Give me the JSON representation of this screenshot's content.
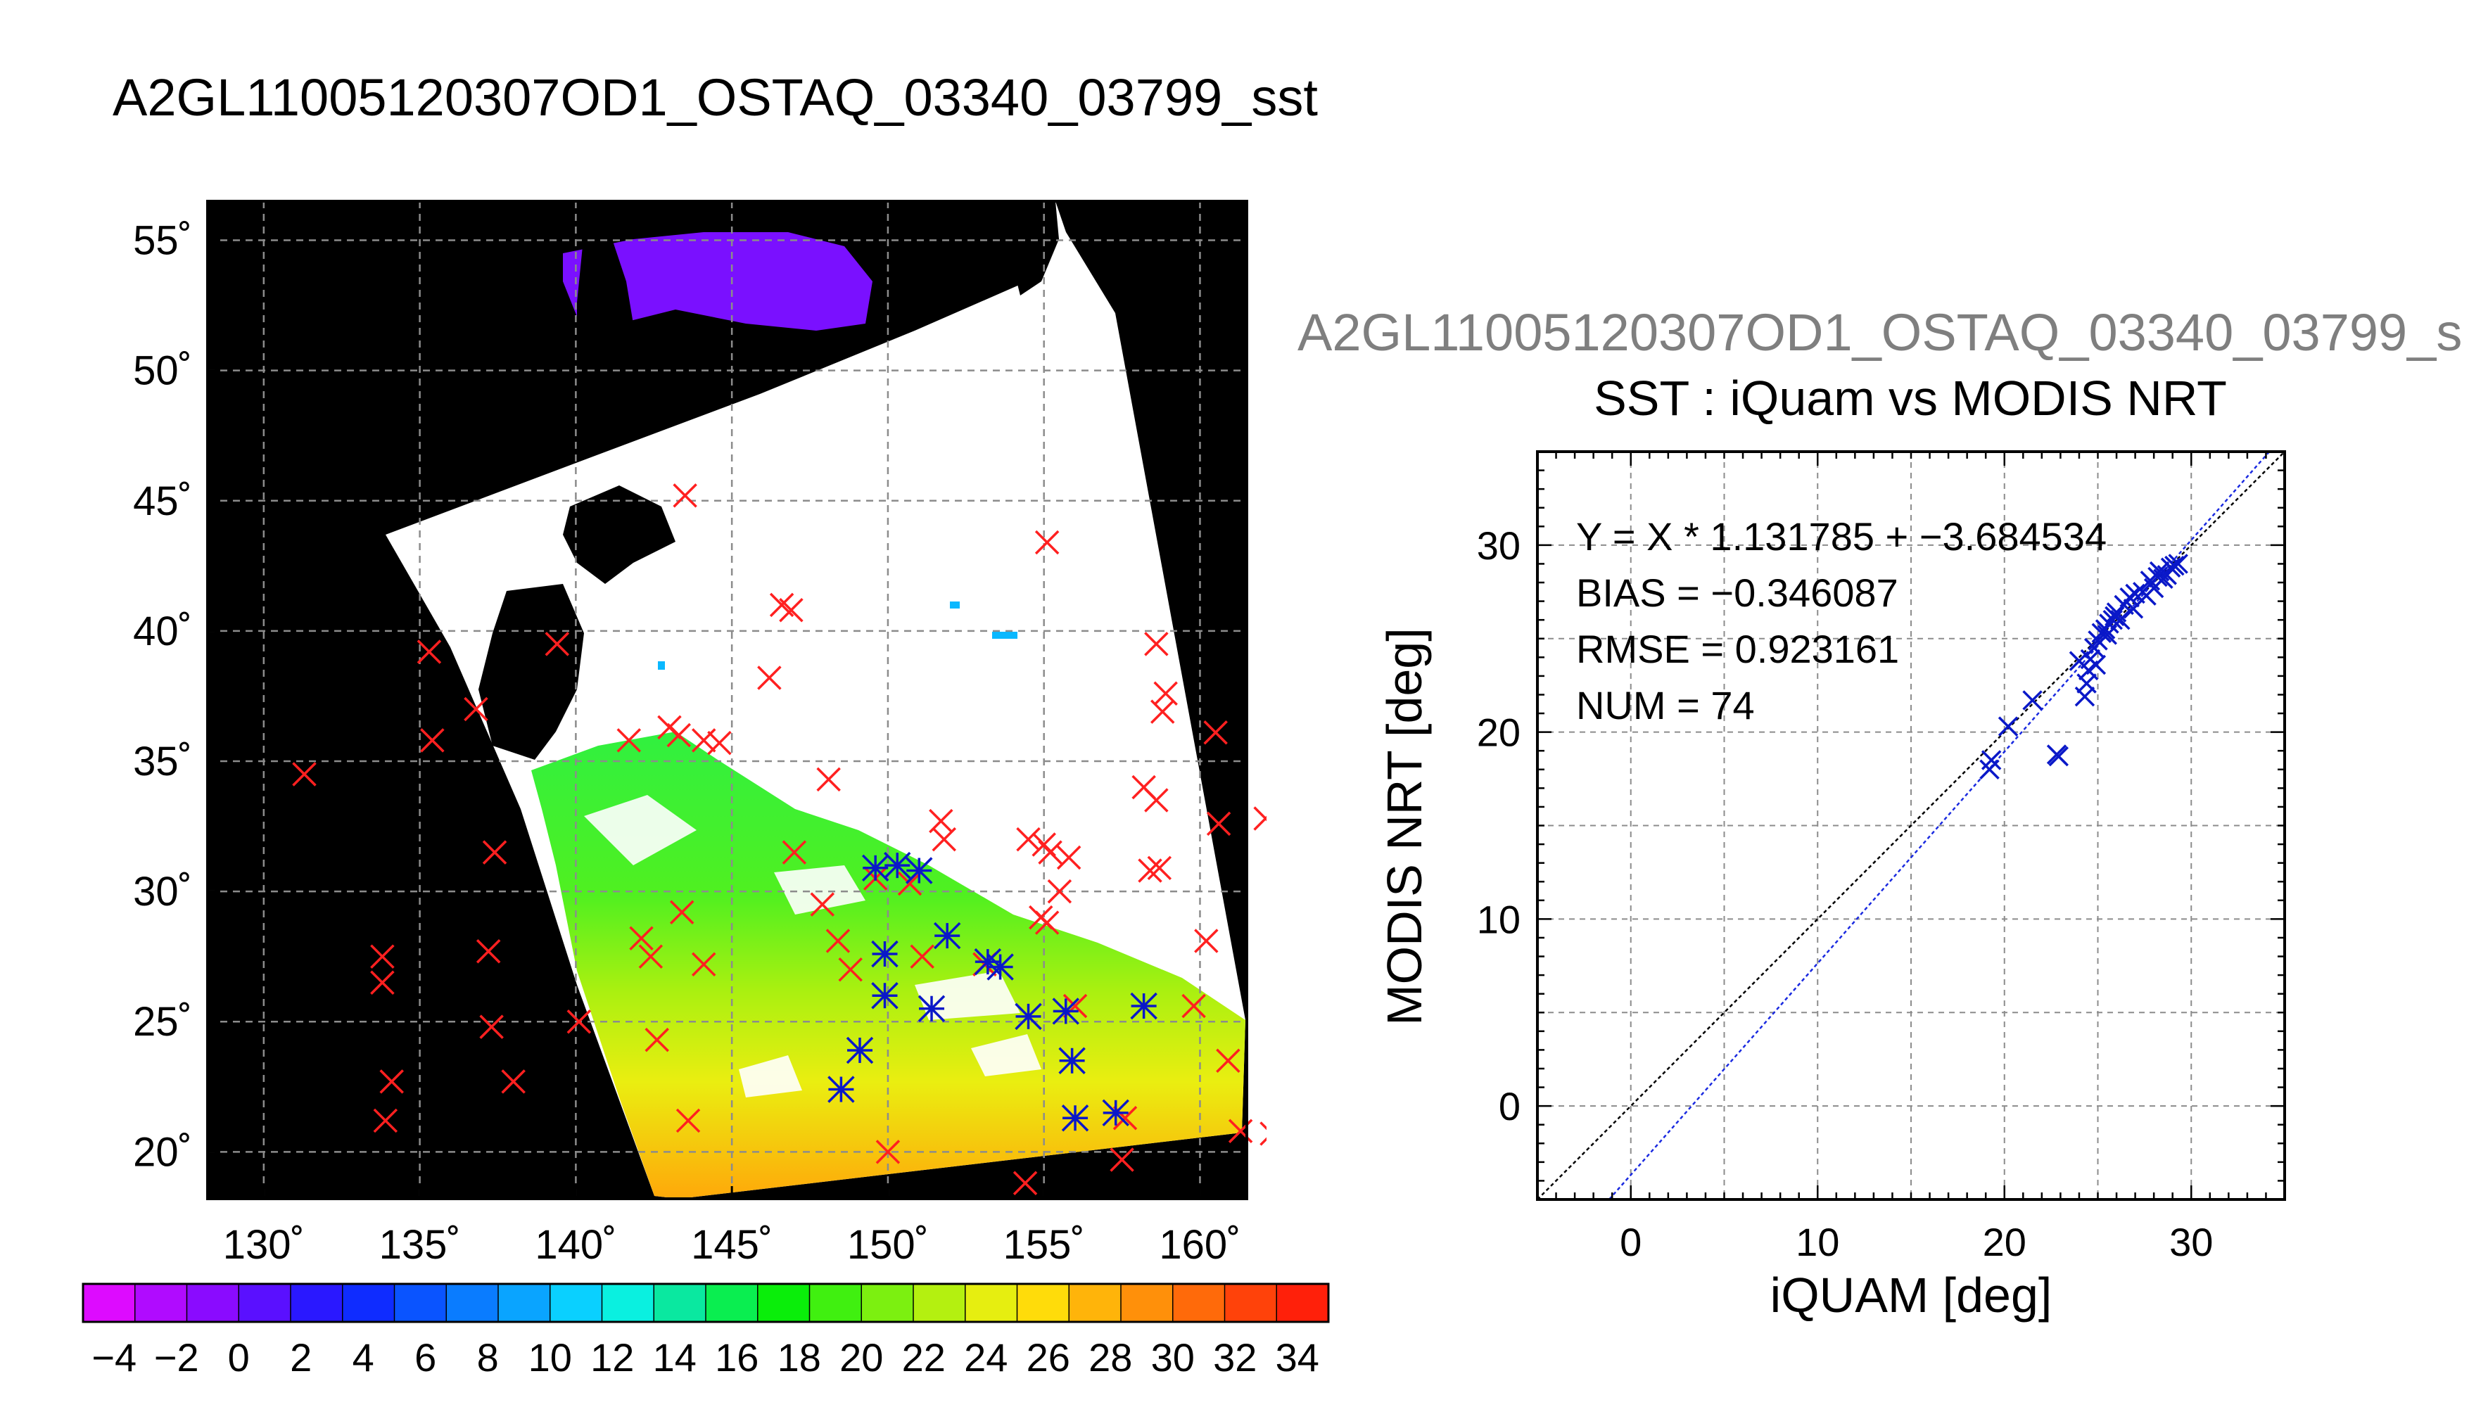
{
  "main_title": "A2GL11005120307OD1_OSTAQ_03340_03799_sst",
  "sub_title": "A2GL11005120307OD1_OSTAQ_03340_03799_s",
  "colors": {
    "land": "#000000",
    "cloud": "#ffffff",
    "iquam_marker": "#ff2020",
    "modis_marker": "#0a18c8",
    "fit_line": "#1a2ae0",
    "one_to_one_line": "#000000",
    "grid": "#8c8c8c"
  },
  "chart_data": [
    {
      "type": "scatter",
      "map_title": "A2GL11005120307OD1_OSTAQ_03340_03799_sst",
      "x_ticks": [
        "130˚",
        "135˚",
        "140˚",
        "145˚",
        "150˚",
        "155˚",
        "160˚"
      ],
      "y_ticks": [
        "20˚",
        "25˚",
        "30˚",
        "35˚",
        "40˚",
        "45˚",
        "50˚",
        "55˚"
      ],
      "xlim": [
        128.2,
        161.5
      ],
      "ylim": [
        18.2,
        56.5
      ],
      "grid": true,
      "series": [
        {
          "name": "",
          "color": "#ff2020",
          "x": [
            131.3,
            133.8,
            133.8,
            134.1,
            133.9,
            135.3,
            135.4,
            136.8,
            137.2,
            137.3,
            137.4,
            138.0,
            139.4,
            140.1,
            141.7,
            142.1,
            142.4,
            142.6,
            143.0,
            143.3,
            143.4,
            143.5,
            143.6,
            144.1,
            144.1,
            144.6,
            146.2,
            146.6,
            146.9,
            147.0,
            147.9,
            148.1,
            148.4,
            148.8,
            149.6,
            150.0,
            150.7,
            151.1,
            151.7,
            151.8,
            153.1,
            154.4,
            154.5,
            154.9,
            155.0,
            155.1,
            155.1,
            155.2,
            155.5,
            155.8,
            156.0,
            157.5,
            157.6,
            158.2,
            158.4,
            158.6,
            158.6,
            158.7,
            158.8,
            158.9,
            159.8,
            160.2,
            160.5,
            160.6,
            160.9,
            161.3,
            162.1,
            162.3
          ],
          "y": [
            34.5,
            27.5,
            26.5,
            22.7,
            21.2,
            39.2,
            35.8,
            37.0,
            27.7,
            24.8,
            31.5,
            22.7,
            39.5,
            25.0,
            35.8,
            28.2,
            27.5,
            24.3,
            36.3,
            36.0,
            29.2,
            45.2,
            21.2,
            27.2,
            35.8,
            35.7,
            38.2,
            41.0,
            40.8,
            31.5,
            29.5,
            34.3,
            28.1,
            27.0,
            30.5,
            20.0,
            30.3,
            27.5,
            32.7,
            32.0,
            27.2,
            18.8,
            32.0,
            29.0,
            31.8,
            43.4,
            28.8,
            31.5,
            30.0,
            31.3,
            25.6,
            19.7,
            21.3,
            34.0,
            30.8,
            33.5,
            39.5,
            30.9,
            36.9,
            37.6,
            25.6,
            28.1,
            36.1,
            32.6,
            23.5,
            20.8,
            32.8,
            20.7
          ]
        },
        {
          "name": "",
          "color": "#0a18c8",
          "x": [
            148.5,
            149.1,
            149.6,
            149.9,
            149.9,
            150.3,
            151.0,
            151.4,
            151.9,
            153.2,
            153.6,
            154.5,
            155.7,
            155.9,
            156.0,
            157.3,
            158.2
          ],
          "y": [
            22.4,
            23.9,
            30.9,
            27.6,
            26.0,
            31.0,
            30.8,
            25.5,
            28.3,
            27.3,
            27.1,
            25.2,
            25.4,
            23.5,
            21.3,
            21.5,
            25.6
          ]
        }
      ]
    },
    {
      "type": "heatmap",
      "colorbar_ticks": [
        "−4",
        "−2",
        "0",
        "2",
        "4",
        "6",
        "8",
        "10",
        "12",
        "14",
        "16",
        "18",
        "20",
        "22",
        "24",
        "26",
        "28",
        "30",
        "32",
        "34"
      ],
      "range": [
        -5,
        35
      ],
      "colors": [
        "#dd0bff",
        "#b00bff",
        "#8a0bff",
        "#5a10ff",
        "#2a18ff",
        "#0f2cff",
        "#0a54ff",
        "#0a7cff",
        "#0aa4ff",
        "#0ad0ff",
        "#0af0e0",
        "#0ae8a0",
        "#0aee50",
        "#0aee0a",
        "#40f010",
        "#7cf010",
        "#b4f010",
        "#e6ee10",
        "#ffdc0a",
        "#ffb40a",
        "#ff900a",
        "#ff6a0a",
        "#ff420a",
        "#ff200a"
      ]
    },
    {
      "type": "scatter",
      "title": "SST : iQuam vs MODIS NRT",
      "xlabel": "iQUAM [deg]",
      "ylabel": "MODIS NRT [deg]",
      "xlim": [
        -5,
        35
      ],
      "ylim": [
        -5,
        35
      ],
      "x_ticks": [
        "0",
        "10",
        "20",
        "30"
      ],
      "y_ticks": [
        "0",
        "10",
        "20",
        "30"
      ],
      "grid": true,
      "annotations": [
        "Y = X * 1.131785 + −3.684534",
        "BIAS = −0.346087",
        "RMSE = 0.923161",
        "NUM = 74"
      ],
      "fit": {
        "slope": 1.131785,
        "intercept": -3.684534
      },
      "series": [
        {
          "name": "",
          "color": "#0a18c8",
          "x": [
            19.2,
            19.3,
            20.2,
            21.5,
            22.8,
            22.9,
            24.0,
            24.3,
            24.4,
            24.5,
            24.6,
            24.8,
            25.0,
            25.2,
            25.4,
            25.6,
            25.8,
            26.0,
            26.2,
            26.4,
            26.7,
            27.0,
            27.4,
            27.8,
            28.2,
            28.3,
            28.5,
            28.7,
            28.9,
            29.1,
            29.3,
            28.0,
            27.6,
            26.9,
            25.9,
            25.5,
            24.9
          ],
          "y": [
            18.0,
            18.5,
            20.3,
            21.7,
            18.8,
            18.7,
            23.8,
            21.9,
            22.6,
            23.3,
            23.9,
            24.5,
            24.9,
            25.3,
            25.5,
            25.8,
            26.0,
            26.4,
            26.0,
            26.8,
            27.2,
            27.4,
            27.5,
            28.1,
            28.3,
            28.6,
            28.2,
            28.4,
            28.8,
            28.9,
            29.0,
            27.7,
            27.3,
            26.6,
            26.2,
            25.2,
            23.6
          ]
        }
      ]
    }
  ]
}
